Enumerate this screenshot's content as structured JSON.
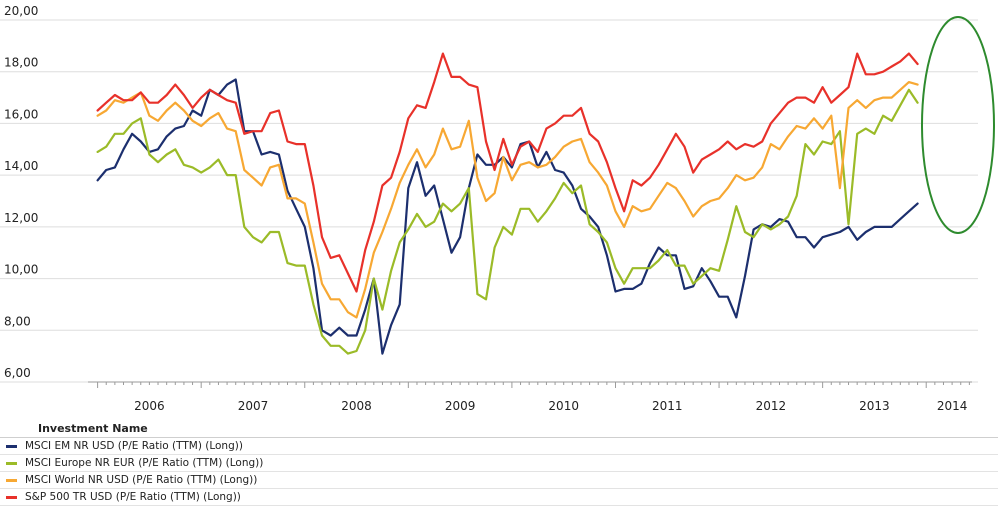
{
  "chart_data": {
    "type": "line",
    "title": "",
    "xlabel": "",
    "ylabel": "",
    "ylim": [
      6,
      20
    ],
    "yticks": [
      "20,00",
      "18,00",
      "16,00",
      "14,00",
      "12,00",
      "10,00",
      "8,00",
      "6,00"
    ],
    "year_labels": [
      "2006",
      "2007",
      "2008",
      "2009",
      "2010",
      "2011",
      "2012",
      "2013",
      "2014"
    ],
    "xlim": [
      2005.83,
      2014.5
    ],
    "x_start": 2006.0,
    "x_step": 0.083333,
    "series": [
      {
        "name": "MSCI EM NR USD (P/E Ratio (TTM) (Long))",
        "color": "#1c2f6e",
        "values": [
          13.8,
          14.2,
          14.3,
          15.0,
          15.6,
          15.3,
          14.9,
          15.0,
          15.5,
          15.8,
          15.9,
          16.5,
          16.3,
          17.3,
          17.1,
          17.5,
          17.7,
          15.7,
          15.7,
          14.8,
          14.9,
          14.8,
          13.4,
          12.7,
          12.0,
          10.4,
          8.0,
          7.8,
          8.1,
          7.8,
          7.8,
          8.8,
          10.0,
          7.1,
          8.2,
          9.0,
          13.5,
          14.5,
          13.2,
          13.6,
          12.3,
          11.0,
          11.6,
          13.5,
          14.8,
          14.4,
          14.4,
          14.7,
          14.3,
          15.2,
          15.3,
          14.3,
          14.9,
          14.2,
          14.1,
          13.6,
          12.7,
          12.4,
          12.0,
          10.9,
          9.5,
          9.6,
          9.6,
          9.8,
          10.6,
          11.2,
          10.9,
          10.9,
          9.6,
          9.7,
          10.4,
          9.9,
          9.3,
          9.3,
          8.5,
          10.1,
          11.9,
          12.1,
          12.0,
          12.3,
          12.2,
          11.6,
          11.6,
          11.2,
          11.6,
          11.7,
          11.8,
          12.0,
          11.5,
          11.8,
          12.0,
          12.0,
          12.0,
          12.3,
          12.6,
          12.9
        ]
      },
      {
        "name": "MSCI Europe NR EUR (P/E Ratio (TTM) (Long))",
        "color": "#9bbb28",
        "values": [
          14.9,
          15.1,
          15.6,
          15.6,
          16.0,
          16.2,
          14.8,
          14.5,
          14.8,
          15.0,
          14.4,
          14.3,
          14.1,
          14.3,
          14.6,
          14.0,
          14.0,
          12.0,
          11.6,
          11.4,
          11.8,
          11.8,
          10.6,
          10.5,
          10.5,
          9.0,
          7.8,
          7.4,
          7.4,
          7.1,
          7.2,
          8.0,
          10.0,
          8.8,
          10.3,
          11.4,
          11.9,
          12.5,
          12.0,
          12.2,
          12.9,
          12.6,
          12.9,
          13.5,
          9.4,
          9.2,
          11.2,
          12.0,
          11.7,
          12.7,
          12.7,
          12.2,
          12.6,
          13.1,
          13.7,
          13.3,
          13.6,
          12.1,
          11.8,
          11.4,
          10.4,
          9.8,
          10.4,
          10.4,
          10.4,
          10.7,
          11.1,
          10.5,
          10.5,
          9.8,
          10.1,
          10.4,
          10.3,
          11.5,
          12.8,
          11.8,
          11.6,
          12.1,
          11.9,
          12.1,
          12.4,
          13.2,
          15.2,
          14.8,
          15.3,
          15.2,
          15.7,
          12.1,
          15.6,
          15.8,
          15.6,
          16.3,
          16.1,
          16.7,
          17.3,
          16.8
        ]
      },
      {
        "name": "MSCI World NR USD (P/E Ratio (TTM) (Long))",
        "color": "#f7a833",
        "values": [
          16.3,
          16.5,
          16.9,
          16.8,
          17.0,
          17.2,
          16.3,
          16.1,
          16.5,
          16.8,
          16.5,
          16.1,
          15.9,
          16.2,
          16.4,
          15.8,
          15.7,
          14.2,
          13.9,
          13.6,
          14.3,
          14.4,
          13.1,
          13.1,
          12.9,
          11.4,
          9.8,
          9.2,
          9.2,
          8.7,
          8.5,
          9.6,
          11.0,
          11.8,
          12.7,
          13.7,
          14.4,
          15.0,
          14.3,
          14.8,
          15.8,
          15.0,
          15.1,
          16.1,
          13.9,
          13.0,
          13.3,
          14.7,
          13.8,
          14.4,
          14.5,
          14.3,
          14.4,
          14.7,
          15.1,
          15.3,
          15.4,
          14.5,
          14.1,
          13.6,
          12.6,
          12.0,
          12.8,
          12.6,
          12.7,
          13.2,
          13.7,
          13.5,
          13.0,
          12.4,
          12.8,
          13.0,
          13.1,
          13.5,
          14.0,
          13.8,
          13.9,
          14.3,
          15.2,
          15.0,
          15.5,
          15.9,
          15.8,
          16.2,
          15.8,
          16.3,
          13.5,
          16.6,
          16.9,
          16.6,
          16.9,
          17.0,
          17.0,
          17.3,
          17.6,
          17.5
        ]
      },
      {
        "name": "S&P 500 TR USD (P/E Ratio (TTM) (Long))",
        "color": "#e8312a",
        "values": [
          16.5,
          16.8,
          17.1,
          16.9,
          16.9,
          17.2,
          16.8,
          16.8,
          17.1,
          17.5,
          17.1,
          16.6,
          17.0,
          17.3,
          17.1,
          16.9,
          16.8,
          15.6,
          15.7,
          15.7,
          16.4,
          16.5,
          15.3,
          15.2,
          15.2,
          13.6,
          11.6,
          10.8,
          10.9,
          10.2,
          9.5,
          11.1,
          12.2,
          13.6,
          13.9,
          14.9,
          16.2,
          16.7,
          16.6,
          17.6,
          18.7,
          17.8,
          17.8,
          17.5,
          17.4,
          15.3,
          14.2,
          15.4,
          14.4,
          15.1,
          15.3,
          14.9,
          15.8,
          16.0,
          16.3,
          16.3,
          16.6,
          15.6,
          15.3,
          14.5,
          13.5,
          12.6,
          13.8,
          13.6,
          13.9,
          14.4,
          15.0,
          15.6,
          15.1,
          14.1,
          14.6,
          14.8,
          15.0,
          15.3,
          15.0,
          15.2,
          15.1,
          15.3,
          16.0,
          16.4,
          16.8,
          17.0,
          17.0,
          16.8,
          17.4,
          16.8,
          17.1,
          17.4,
          18.7,
          17.9,
          17.9,
          18.0,
          18.2,
          18.4,
          18.7,
          18.3
        ]
      }
    ]
  },
  "legend": {
    "header": "Investment Name",
    "items": [
      {
        "label": "MSCI EM NR USD (P/E Ratio (TTM) (Long))",
        "color": "#1c2f6e"
      },
      {
        "label": "MSCI Europe NR EUR (P/E Ratio (TTM) (Long))",
        "color": "#9bbb28"
      },
      {
        "label": "MSCI World NR USD (P/E Ratio (TTM) (Long))",
        "color": "#f7a833"
      },
      {
        "label": "S&P 500 TR USD (P/E Ratio (TTM) (Long))",
        "color": "#e8312a"
      }
    ]
  },
  "annotation": {
    "type": "ellipse",
    "color": "#2e8b2e"
  }
}
